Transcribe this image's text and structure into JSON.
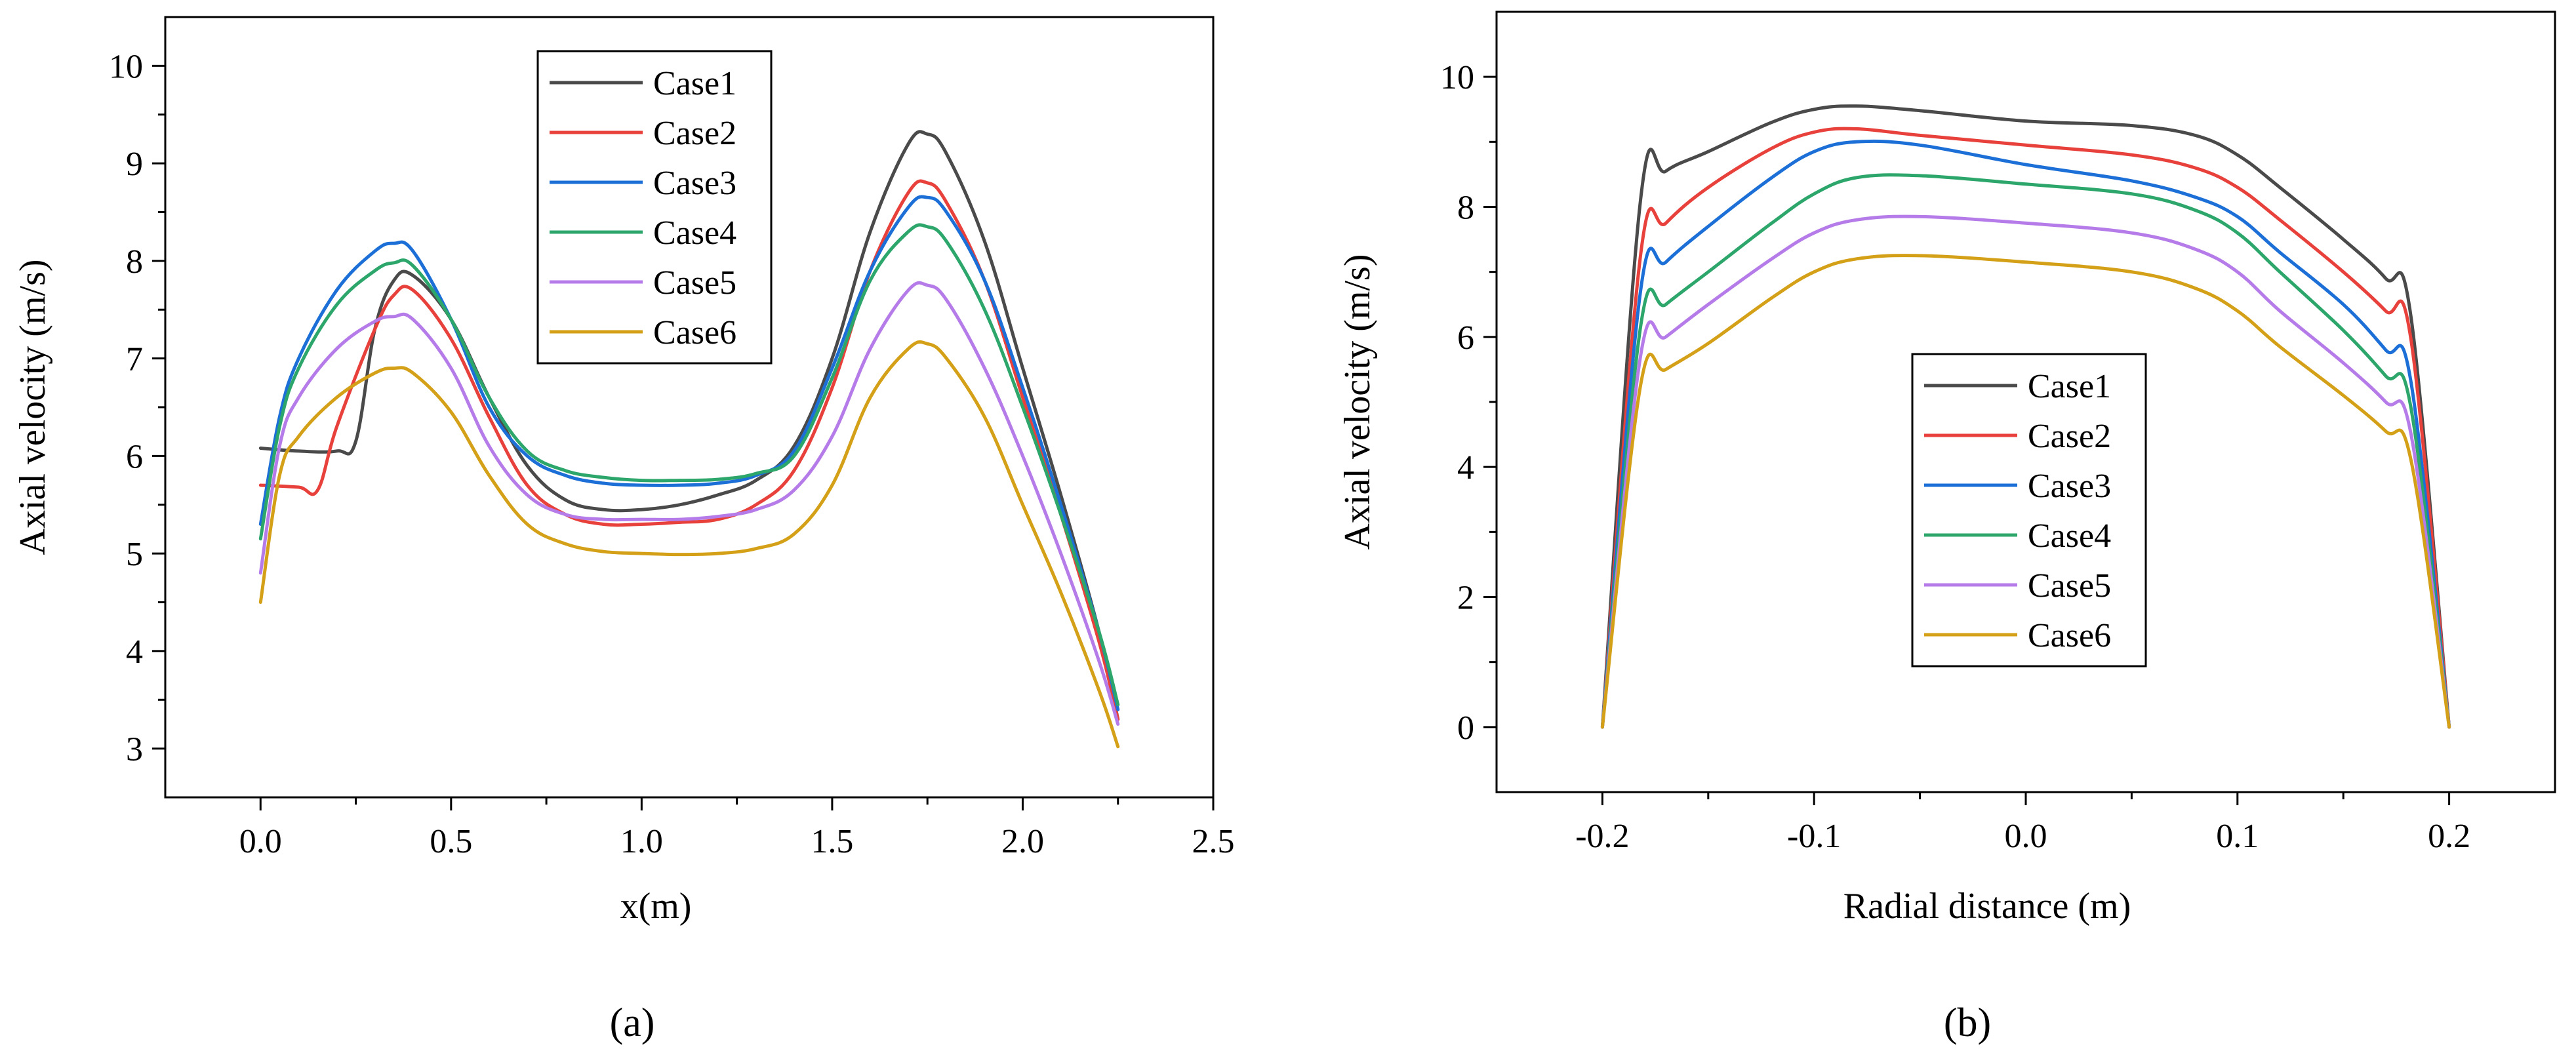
{
  "chart_data": [
    {
      "panel": "(a)",
      "type": "line",
      "xlabel": "x(m)",
      "ylabel": "Axial velocity (m/s)",
      "xlim": [
        -0.25,
        2.5
      ],
      "ylim": [
        2.5,
        10.5
      ],
      "xticks": [
        0.0,
        0.5,
        1.0,
        1.5,
        2.0,
        2.5
      ],
      "xtick_labels": [
        "0.0",
        "0.5",
        "1.0",
        "1.5",
        "2.0",
        "2.5"
      ],
      "yticks": [
        3,
        4,
        5,
        6,
        7,
        8,
        9,
        10
      ],
      "ytick_labels": [
        "3",
        "4",
        "5",
        "6",
        "7",
        "8",
        "9",
        "10"
      ],
      "legend_position": "top-center",
      "series": [
        {
          "name": "Case1",
          "color": "#4a4a4a",
          "x": [
            0.0,
            0.1,
            0.2,
            0.25,
            0.3,
            0.35,
            0.4,
            0.5,
            0.6,
            0.7,
            0.8,
            0.9,
            1.0,
            1.1,
            1.2,
            1.3,
            1.4,
            1.5,
            1.6,
            1.7,
            1.75,
            1.8,
            1.9,
            2.0,
            2.1,
            2.2,
            2.25
          ],
          "y": [
            6.08,
            6.05,
            6.05,
            6.15,
            7.3,
            7.8,
            7.85,
            7.4,
            6.6,
            5.9,
            5.55,
            5.45,
            5.45,
            5.5,
            5.6,
            5.75,
            6.1,
            7.0,
            8.3,
            9.2,
            9.3,
            9.1,
            8.2,
            6.9,
            5.6,
            4.2,
            3.3
          ]
        },
        {
          "name": "Case2",
          "color": "#e8413c",
          "x": [
            0.0,
            0.1,
            0.15,
            0.2,
            0.3,
            0.35,
            0.4,
            0.5,
            0.6,
            0.7,
            0.8,
            0.9,
            1.0,
            1.1,
            1.2,
            1.3,
            1.4,
            1.5,
            1.6,
            1.7,
            1.75,
            1.8,
            1.9,
            2.0,
            2.1,
            2.2,
            2.25
          ],
          "y": [
            5.7,
            5.68,
            5.65,
            6.3,
            7.3,
            7.65,
            7.7,
            7.2,
            6.4,
            5.7,
            5.4,
            5.3,
            5.3,
            5.32,
            5.35,
            5.5,
            5.85,
            6.7,
            7.9,
            8.7,
            8.8,
            8.6,
            7.8,
            6.6,
            5.4,
            4.1,
            3.3
          ]
        },
        {
          "name": "Case3",
          "color": "#1c6fd6",
          "x": [
            0.0,
            0.05,
            0.1,
            0.2,
            0.3,
            0.35,
            0.4,
            0.5,
            0.6,
            0.7,
            0.8,
            0.9,
            1.0,
            1.1,
            1.2,
            1.3,
            1.4,
            1.5,
            1.6,
            1.7,
            1.75,
            1.8,
            1.9,
            2.0,
            2.1,
            2.2,
            2.25
          ],
          "y": [
            5.3,
            6.4,
            7.0,
            7.7,
            8.1,
            8.18,
            8.1,
            7.4,
            6.5,
            6.0,
            5.8,
            5.72,
            5.7,
            5.7,
            5.72,
            5.8,
            6.05,
            6.9,
            7.9,
            8.55,
            8.65,
            8.5,
            7.8,
            6.7,
            5.5,
            4.2,
            3.4
          ]
        },
        {
          "name": "Case4",
          "color": "#2ca66a",
          "x": [
            0.0,
            0.05,
            0.1,
            0.2,
            0.3,
            0.35,
            0.4,
            0.5,
            0.6,
            0.7,
            0.8,
            0.9,
            1.0,
            1.1,
            1.2,
            1.3,
            1.4,
            1.5,
            1.6,
            1.7,
            1.75,
            1.8,
            1.9,
            2.0,
            2.1,
            2.2,
            2.25
          ],
          "y": [
            5.15,
            6.3,
            6.9,
            7.55,
            7.9,
            7.98,
            7.95,
            7.4,
            6.6,
            6.05,
            5.85,
            5.78,
            5.75,
            5.75,
            5.76,
            5.82,
            6.0,
            6.8,
            7.8,
            8.3,
            8.35,
            8.2,
            7.5,
            6.5,
            5.4,
            4.2,
            3.45
          ]
        },
        {
          "name": "Case5",
          "color": "#b57be8",
          "x": [
            0.0,
            0.05,
            0.1,
            0.2,
            0.3,
            0.35,
            0.4,
            0.5,
            0.6,
            0.7,
            0.8,
            0.9,
            1.0,
            1.1,
            1.2,
            1.3,
            1.4,
            1.5,
            1.6,
            1.7,
            1.75,
            1.8,
            1.9,
            2.0,
            2.1,
            2.2,
            2.25
          ],
          "y": [
            4.8,
            6.1,
            6.6,
            7.1,
            7.38,
            7.43,
            7.4,
            6.9,
            6.1,
            5.6,
            5.4,
            5.35,
            5.35,
            5.35,
            5.38,
            5.45,
            5.65,
            6.2,
            7.1,
            7.7,
            7.75,
            7.6,
            6.9,
            6.0,
            5.0,
            3.9,
            3.25
          ]
        },
        {
          "name": "Case6",
          "color": "#d4a017",
          "x": [
            0.0,
            0.05,
            0.1,
            0.2,
            0.3,
            0.35,
            0.4,
            0.5,
            0.6,
            0.7,
            0.8,
            0.9,
            1.0,
            1.1,
            1.2,
            1.3,
            1.4,
            1.5,
            1.6,
            1.7,
            1.75,
            1.8,
            1.9,
            2.0,
            2.1,
            2.2,
            2.25
          ],
          "y": [
            4.5,
            5.8,
            6.2,
            6.6,
            6.85,
            6.9,
            6.85,
            6.45,
            5.8,
            5.3,
            5.1,
            5.02,
            5.0,
            4.99,
            5.0,
            5.05,
            5.2,
            5.7,
            6.6,
            7.1,
            7.15,
            7.0,
            6.4,
            5.5,
            4.6,
            3.6,
            3.02
          ]
        }
      ]
    },
    {
      "panel": "(b)",
      "type": "line",
      "xlabel": "Radial distance (m)",
      "ylabel": "Axial velocity (m/s)",
      "xlim": [
        -0.25,
        0.25
      ],
      "ylim": [
        -1,
        11
      ],
      "xticks": [
        -0.2,
        -0.1,
        0.0,
        0.1,
        0.2
      ],
      "xtick_labels": [
        "-0.2",
        "-0.1",
        "0.0",
        "0.1",
        "0.2"
      ],
      "yticks": [
        0,
        2,
        4,
        6,
        8,
        10
      ],
      "ytick_labels": [
        "0",
        "2",
        "4",
        "6",
        "8",
        "10"
      ],
      "legend_position": "center-left",
      "series": [
        {
          "name": "Case1",
          "color": "#4a4a4a",
          "x": [
            -0.2,
            -0.182,
            -0.17,
            -0.15,
            -0.12,
            -0.1,
            -0.08,
            -0.05,
            0.0,
            0.05,
            0.08,
            0.1,
            0.12,
            0.15,
            0.17,
            0.182,
            0.2
          ],
          "y": [
            0,
            8.1,
            8.55,
            8.85,
            9.3,
            9.5,
            9.55,
            9.48,
            9.32,
            9.25,
            9.1,
            8.8,
            8.3,
            7.5,
            6.9,
            6.3,
            0
          ]
        },
        {
          "name": "Case2",
          "color": "#e8413c",
          "x": [
            -0.2,
            -0.182,
            -0.17,
            -0.15,
            -0.12,
            -0.1,
            -0.08,
            -0.05,
            0.0,
            0.05,
            0.08,
            0.1,
            0.12,
            0.15,
            0.17,
            0.182,
            0.2
          ],
          "y": [
            0,
            7.25,
            7.75,
            8.3,
            8.9,
            9.15,
            9.2,
            9.1,
            8.95,
            8.8,
            8.6,
            8.3,
            7.8,
            7.0,
            6.4,
            5.95,
            0
          ]
        },
        {
          "name": "Case3",
          "color": "#1c6fd6",
          "x": [
            -0.2,
            -0.182,
            -0.17,
            -0.15,
            -0.12,
            -0.1,
            -0.08,
            -0.05,
            0.0,
            0.05,
            0.08,
            0.1,
            0.12,
            0.15,
            0.17,
            0.182,
            0.2
          ],
          "y": [
            0,
            6.7,
            7.15,
            7.7,
            8.45,
            8.85,
            9.0,
            8.95,
            8.65,
            8.4,
            8.15,
            7.85,
            7.3,
            6.5,
            5.8,
            5.3,
            0
          ]
        },
        {
          "name": "Case4",
          "color": "#2ca66a",
          "x": [
            -0.2,
            -0.182,
            -0.17,
            -0.15,
            -0.12,
            -0.1,
            -0.08,
            -0.05,
            0.0,
            0.05,
            0.08,
            0.1,
            0.12,
            0.15,
            0.17,
            0.182,
            0.2
          ],
          "y": [
            0,
            6.15,
            6.5,
            7.0,
            7.75,
            8.2,
            8.45,
            8.48,
            8.35,
            8.2,
            7.95,
            7.6,
            7.0,
            6.1,
            5.4,
            4.9,
            0
          ]
        },
        {
          "name": "Case5",
          "color": "#b57be8",
          "x": [
            -0.2,
            -0.182,
            -0.17,
            -0.15,
            -0.12,
            -0.1,
            -0.08,
            -0.05,
            0.0,
            0.05,
            0.08,
            0.1,
            0.12,
            0.15,
            0.17,
            0.182,
            0.2
          ],
          "y": [
            0,
            5.7,
            6.0,
            6.5,
            7.2,
            7.6,
            7.8,
            7.85,
            7.75,
            7.6,
            7.35,
            7.0,
            6.4,
            5.6,
            5.0,
            4.5,
            0
          ]
        },
        {
          "name": "Case6",
          "color": "#d4a017",
          "x": [
            -0.2,
            -0.182,
            -0.17,
            -0.15,
            -0.12,
            -0.1,
            -0.08,
            -0.05,
            0.0,
            0.05,
            0.08,
            0.1,
            0.12,
            0.15,
            0.17,
            0.182,
            0.2
          ],
          "y": [
            0,
            5.25,
            5.5,
            5.9,
            6.6,
            7.0,
            7.2,
            7.25,
            7.15,
            7.0,
            6.75,
            6.4,
            5.85,
            5.1,
            4.55,
            4.1,
            0
          ]
        }
      ]
    }
  ]
}
